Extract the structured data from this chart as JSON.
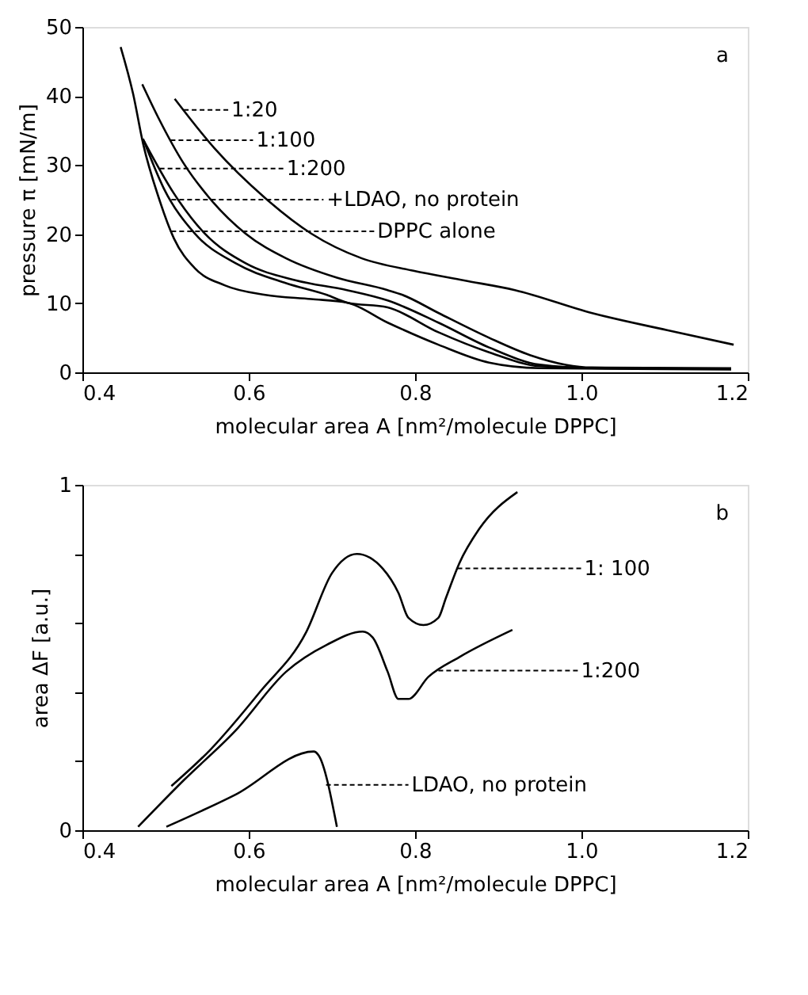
{
  "chart_data": [
    {
      "type": "line",
      "xlabel": "molecular area A [nm²/molecule DPPC]",
      "ylabel": "pressure π [mN/m]",
      "xlim": [
        0.4,
        1.2
      ],
      "xticks": [
        0.4,
        0.6,
        0.8,
        {
          "value": 1.0,
          "label": "1.0"
        },
        1.2
      ],
      "ylim": [
        0,
        50
      ],
      "yticks": [
        0,
        10,
        20,
        30,
        40,
        50
      ],
      "grid": false,
      "marker": "none",
      "line_style": "solid",
      "series": [
        {
          "color": "#000000",
          "x": [
            0.511,
            0.559,
            0.62,
            0.675,
            0.736,
            0.798,
            0.859,
            0.92,
            1.012,
            1.103,
            1.183
          ],
          "values": [
            39.6,
            32.4,
            25.2,
            20.1,
            16.5,
            14.7,
            13.3,
            11.9,
            8.6,
            6.1,
            4.0
          ]
        },
        {
          "color": "#000000",
          "x": [
            0.472,
            0.492,
            0.522,
            0.553,
            0.596,
            0.645,
            0.706,
            0.767,
            0.785,
            0.828,
            0.889,
            0.938,
            0.981,
            1.012,
            1.18
          ],
          "values": [
            41.7,
            36.7,
            30.2,
            25.2,
            20.1,
            16.5,
            13.7,
            11.9,
            11.2,
            8.6,
            5.0,
            2.5,
            1.1,
            0.7,
            0.6
          ]
        },
        {
          "color": "#000000",
          "x": [
            0.474,
            0.51,
            0.547,
            0.596,
            0.657,
            0.718,
            0.767,
            0.828,
            0.889,
            0.95,
            1.012,
            1.18
          ],
          "values": [
            33.5,
            25.9,
            20.1,
            15.8,
            13.3,
            11.9,
            10.4,
            7.2,
            3.6,
            1.1,
            0.6,
            0.5
          ]
        },
        {
          "color": "#000000",
          "x": [
            0.473,
            0.498,
            0.535,
            0.584,
            0.645,
            0.694,
            0.718,
            0.767,
            0.828,
            0.889,
            0.95,
            1.0
          ],
          "values": [
            33.8,
            26.6,
            20.1,
            15.8,
            12.9,
            11.2,
            10.1,
            9.4,
            5.8,
            2.9,
            0.9,
            0.7
          ]
        },
        {
          "color": "#000000",
          "x": [
            0.446,
            0.461,
            0.473,
            0.492,
            0.51,
            0.535,
            0.571,
            0.62,
            0.675,
            0.718,
            0.767,
            0.828,
            0.889,
            0.95,
            1.18
          ],
          "values": [
            47.1,
            40.3,
            33.1,
            25.2,
            19.4,
            15.1,
            12.6,
            11.2,
            10.6,
            10.1,
            7.2,
            4.0,
            1.4,
            0.6,
            0.4
          ]
        }
      ],
      "annotations": [
        "a",
        {
          "text": "1:20",
          "x": 0.522,
          "y": 38.0
        },
        "1:100",
        {
          "text": "1:200",
          "x": 0.493,
          "y": 29.5
        },
        {
          "text": "+LDAO, no protein",
          "x": 0.507,
          "y": 25.0
        },
        {
          "text": "DPPC alone",
          "x": 0.507,
          "y": 20.4
        }
      ]
    },
    {
      "type": "line",
      "xlabel": "molecular area A [nm²/molecule DPPC]",
      "ylabel": "area ΔF [a.u.]",
      "xlim": [
        0.4,
        1.2
      ],
      "xticks": [
        0.4,
        0.6,
        0.8,
        {
          "value": 1.0,
          "label": "1.0"
        },
        1.2
      ],
      "ylim": [
        0,
        1
      ],
      "yticks": [
        0,
        {
          "value": 0.2,
          "label": null
        },
        {
          "value": 0.4,
          "label": null
        },
        {
          "value": 0.6,
          "label": null
        },
        {
          "value": 0.8,
          "label": null
        },
        1
      ],
      "grid": false,
      "marker": "none",
      "line_style": "solid",
      "series": [
        {
          "color": "#000000",
          "x": [
            0.507,
            0.553,
            0.614,
            0.669,
            0.7,
            0.73,
            0.761,
            0.78,
            0.792,
            0.81,
            0.828,
            0.837,
            0.853,
            0.877,
            0.923
          ],
          "values": [
            0.128,
            0.231,
            0.402,
            0.573,
            0.744,
            0.8,
            0.758,
            0.687,
            0.615,
            0.594,
            0.615,
            0.672,
            0.772,
            0.872,
            0.979
          ]
        },
        {
          "color": "#000000",
          "x": [
            0.467,
            0.522,
            0.584,
            0.645,
            0.694,
            0.737,
            0.749,
            0.767,
            0.78,
            0.792,
            0.816,
            0.853,
            0.917
          ],
          "values": [
            0.01,
            0.145,
            0.288,
            0.459,
            0.537,
            0.575,
            0.558,
            0.459,
            0.38,
            0.38,
            0.444,
            0.501,
            0.58
          ]
        },
        {
          "color": "#000000",
          "x": [
            0.501,
            0.584,
            0.678,
            0.684,
            0.706
          ],
          "values": [
            0.01,
            0.103,
            0.228,
            0.217,
            0.01
          ]
        }
      ],
      "annotations": [
        "b",
        {
          "text": "1: 100",
          "x": 0.851,
          "y": 0.758
        },
        {
          "text": "1:200",
          "x": 0.828,
          "y": 0.462
        },
        "LDAO, no protein"
      ]
    }
  ]
}
